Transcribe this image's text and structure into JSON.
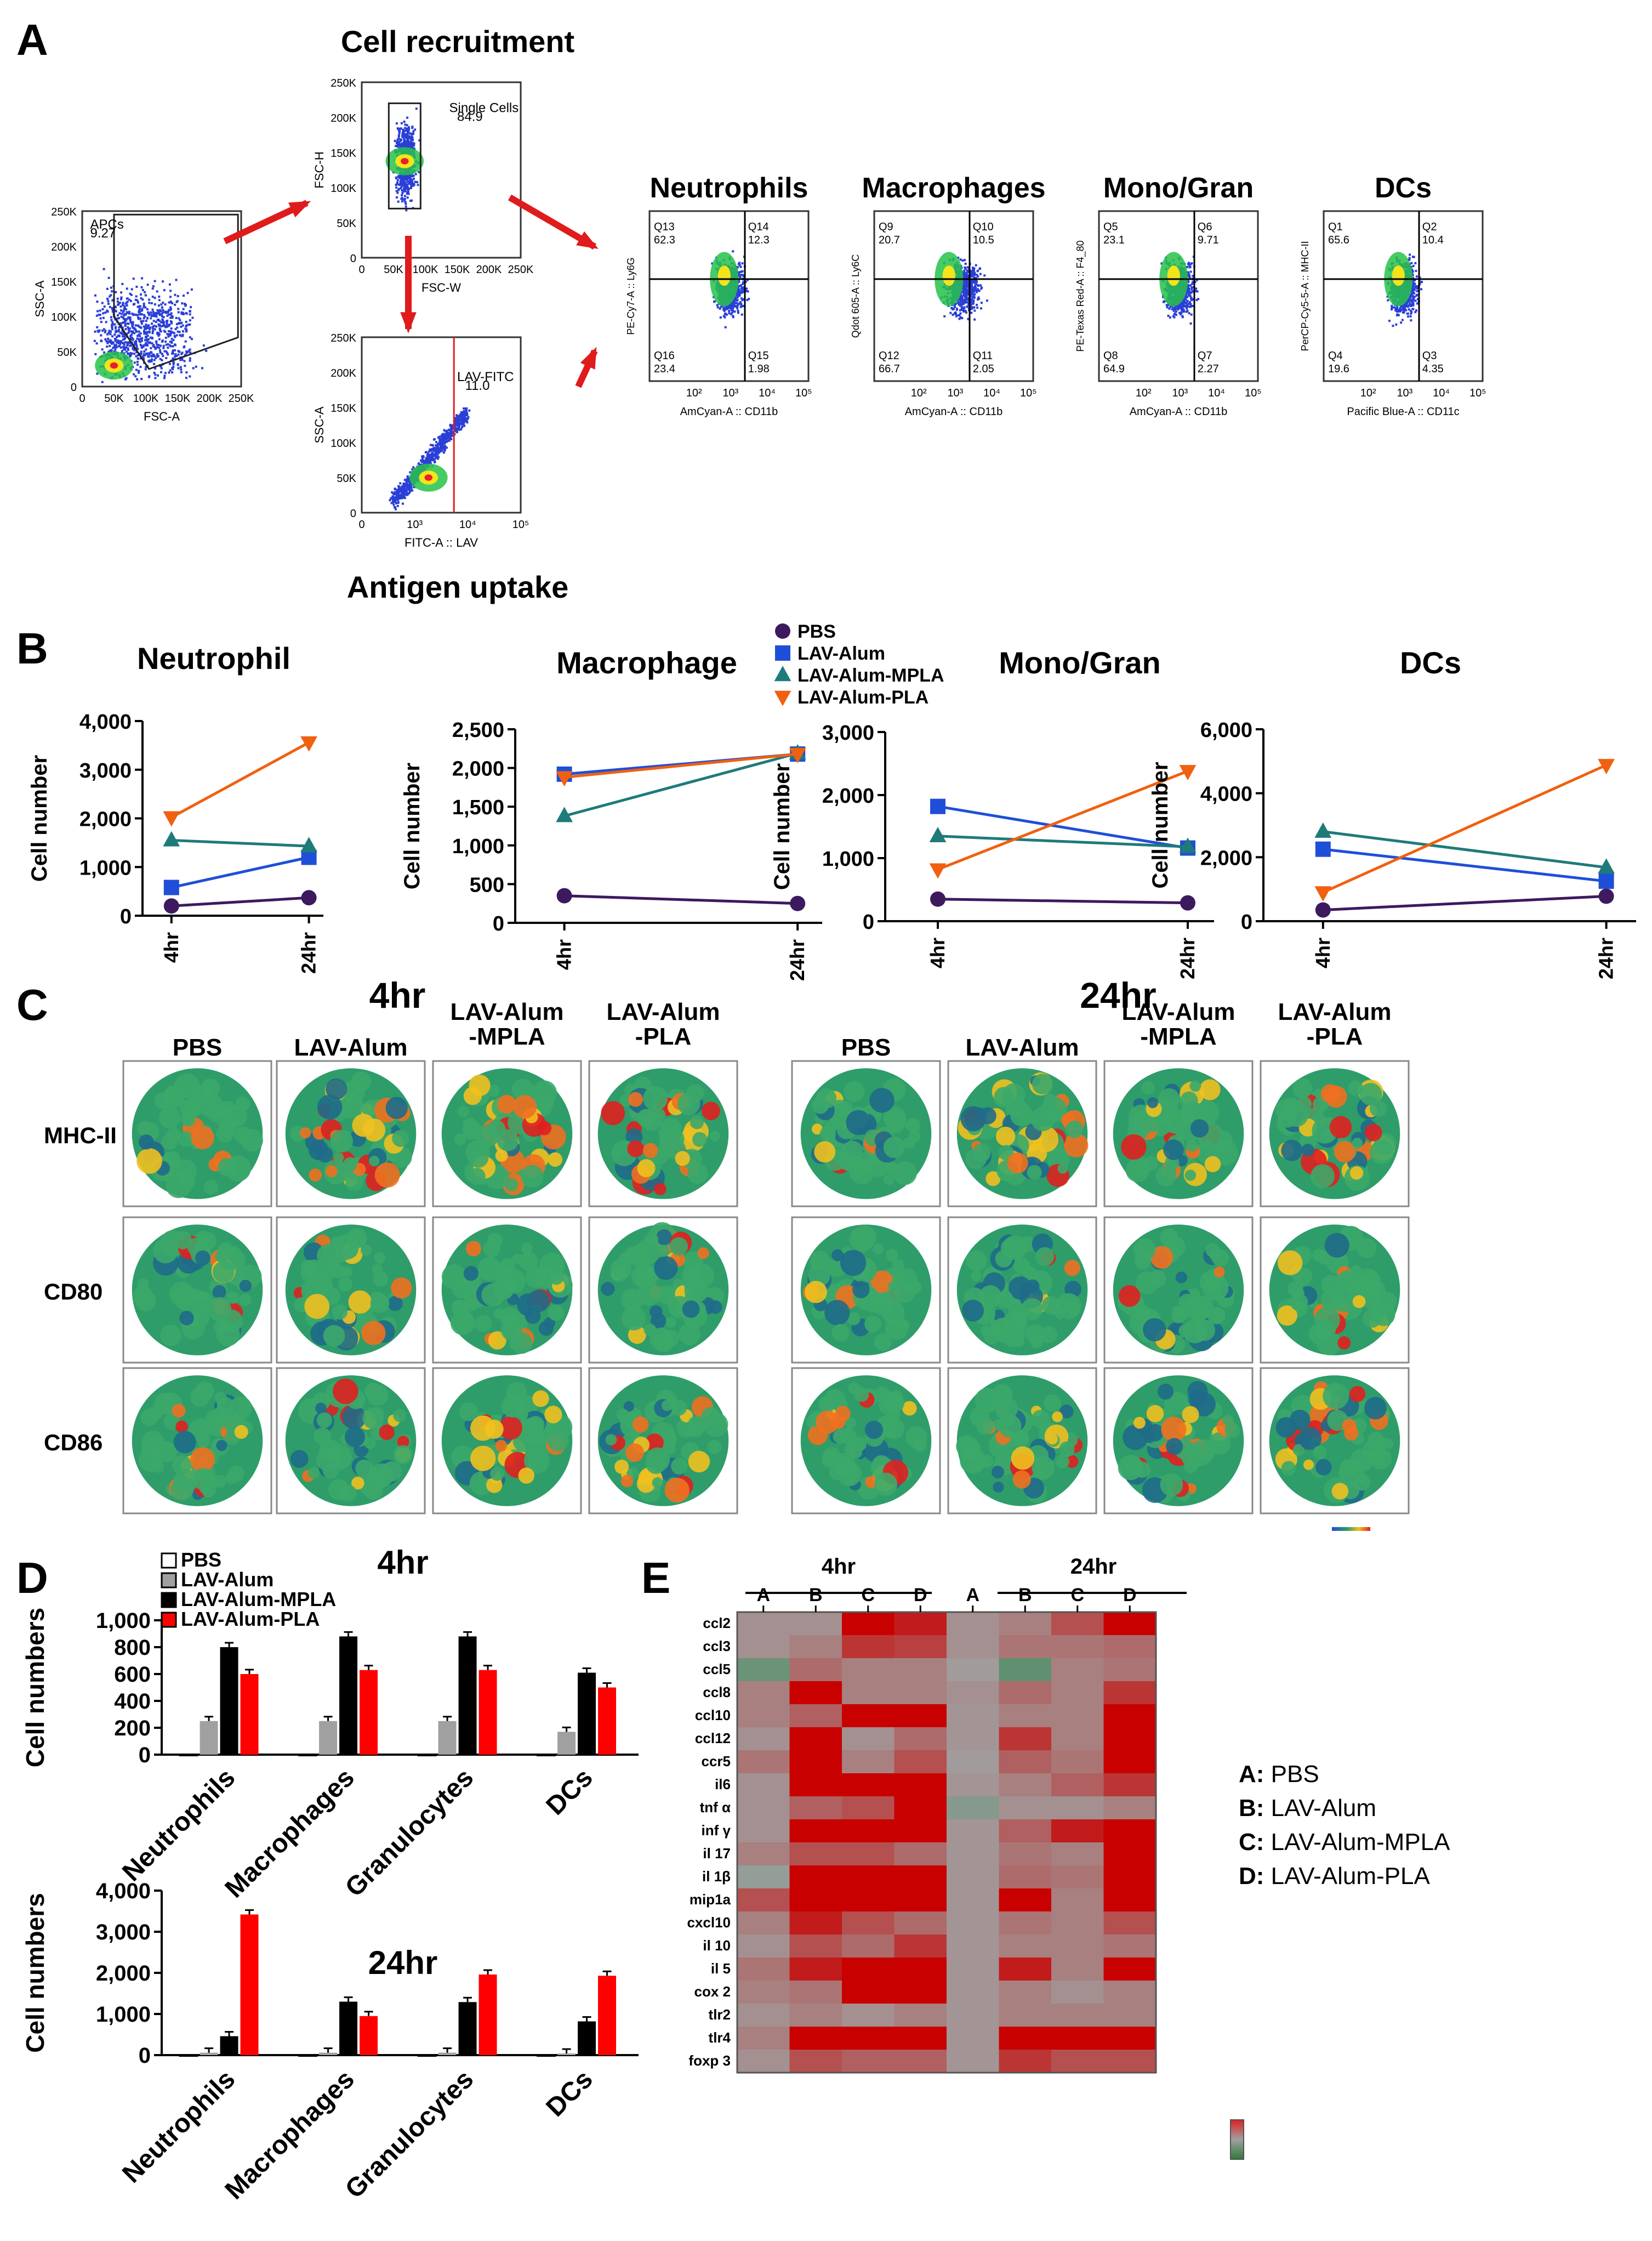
{
  "panel_labels": {
    "A": "A",
    "B": "B",
    "C": "C",
    "D": "D",
    "E": "E"
  },
  "panel_a": {
    "title_recruitment": "Cell recruitment",
    "title_uptake": "Antigen uptake",
    "gates": [
      {
        "name": "apcs",
        "gate_label": "APCs",
        "gate_value": "9.27",
        "xlabel": "FSC-A",
        "ylabel": "SSC-A",
        "xticks": [
          "0",
          "50K",
          "100K",
          "150K",
          "200K",
          "250K"
        ],
        "yticks": [
          "0",
          "50K",
          "100K",
          "150K",
          "200K",
          "250K"
        ]
      },
      {
        "name": "single-cells",
        "gate_label": "Single Cells",
        "gate_value": "84.9",
        "xlabel": "FSC-W",
        "ylabel": "FSC-H",
        "xticks": [
          "0",
          "50K",
          "100K",
          "150K",
          "200K",
          "250K"
        ],
        "yticks": [
          "0",
          "50K",
          "100K",
          "150K",
          "200K",
          "250K"
        ]
      },
      {
        "name": "lav-fitc",
        "gate_label": "LAV-FITC",
        "gate_value": "11.0",
        "xlabel": "FITC-A :: LAV",
        "ylabel": "SSC-A",
        "xticks": [
          "0",
          "10³",
          "10⁴",
          "10⁵"
        ],
        "yticks": [
          "0",
          "50K",
          "100K",
          "150K",
          "200K",
          "250K"
        ]
      }
    ],
    "quadrants": [
      {
        "title": "Neutrophils",
        "xlabel": "AmCyan-A :: CD11b",
        "ylabel": "PE-Cy7-A :: Ly6G",
        "q": [
          [
            "Q13",
            "62.3"
          ],
          [
            "Q14",
            "12.3"
          ],
          [
            "Q16",
            "23.4"
          ],
          [
            "Q15",
            "1.98"
          ]
        ]
      },
      {
        "title": "Macrophages",
        "xlabel": "AmCyan-A :: CD11b",
        "ylabel": "Qdot 605-A :: Ly6C",
        "q": [
          [
            "Q9",
            "20.7"
          ],
          [
            "Q10",
            "10.5"
          ],
          [
            "Q12",
            "66.7"
          ],
          [
            "Q11",
            "2.05"
          ]
        ]
      },
      {
        "title": "Mono/Gran",
        "xlabel": "AmCyan-A :: CD11b",
        "ylabel": "PE-Texas Red-A :: F4_80",
        "q": [
          [
            "Q5",
            "23.1"
          ],
          [
            "Q6",
            "9.71"
          ],
          [
            "Q8",
            "64.9"
          ],
          [
            "Q7",
            "2.27"
          ]
        ]
      },
      {
        "title": "DCs",
        "xlabel": "Pacific Blue-A :: CD11c",
        "ylabel": "PerCP-Cy5-5-A :: MHC-II",
        "q": [
          [
            "Q1",
            "65.6"
          ],
          [
            "Q2",
            "10.4"
          ],
          [
            "Q4",
            "19.6"
          ],
          [
            "Q3",
            "4.35"
          ]
        ]
      }
    ]
  },
  "panel_b_legend": [
    {
      "name": "PBS",
      "color": "#3d1a5e",
      "marker": "circle"
    },
    {
      "name": "LAV-Alum",
      "color": "#1f4fd8",
      "marker": "square"
    },
    {
      "name": "LAV-Alum-MPLA",
      "color": "#1f7a7a",
      "marker": "triangle"
    },
    {
      "name": "LAV-Alum-PLA",
      "color": "#f06010",
      "marker": "tri-down"
    }
  ],
  "panel_c": {
    "time_labels": [
      "4hr",
      "24hr"
    ],
    "group_labels": [
      [
        "PBS"
      ],
      [
        "LAV-Alum"
      ],
      [
        "LAV-Alum",
        "-MPLA"
      ],
      [
        "LAV-Alum",
        "-PLA"
      ]
    ],
    "markers": [
      "MHC-II",
      "CD80",
      "CD86"
    ]
  },
  "panel_d_legend": [
    {
      "name": "PBS",
      "color": "#ffffff"
    },
    {
      "name": "LAV-Alum",
      "color": "#a0a0a0"
    },
    {
      "name": "LAV-Alum-MPLA",
      "color": "#000000"
    },
    {
      "name": "LAV-Alum-PLA",
      "color": "#ff0000"
    }
  ],
  "panel_e_legend": [
    "A: PBS",
    "B: LAV-Alum",
    "C: LAV-Alum-MPLA",
    "D: LAV-Alum-PLA"
  ],
  "chart_data": [
    {
      "id": "b-neutrophil",
      "type": "line",
      "title": "Neutrophil",
      "ylabel": "Cell number",
      "categories": [
        "4hr",
        "24hr"
      ],
      "ylim": [
        0,
        4000
      ],
      "yticks": [
        0,
        1000,
        2000,
        3000,
        4000
      ],
      "ytick_labels": [
        "0",
        "1,000",
        "2,000",
        "3,000",
        "4,000"
      ],
      "series": [
        {
          "name": "PBS",
          "values": [
            200,
            370
          ]
        },
        {
          "name": "LAV-Alum",
          "values": [
            580,
            1200
          ]
        },
        {
          "name": "LAV-Alum-MPLA",
          "values": [
            1550,
            1430
          ]
        },
        {
          "name": "LAV-Alum-PLA",
          "values": [
            2020,
            3560
          ]
        }
      ]
    },
    {
      "id": "b-macrophage",
      "type": "line",
      "title": "Macrophage",
      "ylabel": "Cell number",
      "categories": [
        "4hr",
        "24hr"
      ],
      "ylim": [
        0,
        2500
      ],
      "yticks": [
        0,
        500,
        1000,
        1500,
        2000,
        2500
      ],
      "ytick_labels": [
        "0",
        "500",
        "1,000",
        "1,500",
        "2,000",
        "2,500"
      ],
      "series": [
        {
          "name": "PBS",
          "values": [
            350,
            250
          ]
        },
        {
          "name": "LAV-Alum",
          "values": [
            1920,
            2180
          ]
        },
        {
          "name": "LAV-Alum-MPLA",
          "values": [
            1380,
            2190
          ]
        },
        {
          "name": "LAV-Alum-PLA",
          "values": [
            1880,
            2180
          ]
        }
      ]
    },
    {
      "id": "b-monogran",
      "type": "line",
      "title": "Mono/Gran",
      "ylabel": "Cell number",
      "categories": [
        "4hr",
        "24hr"
      ],
      "ylim": [
        0,
        3000
      ],
      "yticks": [
        0,
        1000,
        2000,
        3000
      ],
      "ytick_labels": [
        "0",
        "1,000",
        "2,000",
        "3,000"
      ],
      "series": [
        {
          "name": "PBS",
          "values": [
            350,
            290
          ]
        },
        {
          "name": "LAV-Alum",
          "values": [
            1820,
            1160
          ]
        },
        {
          "name": "LAV-Alum-MPLA",
          "values": [
            1350,
            1180
          ]
        },
        {
          "name": "LAV-Alum-PLA",
          "values": [
            820,
            2380
          ]
        }
      ]
    },
    {
      "id": "b-dcs",
      "type": "line",
      "title": "DCs",
      "ylabel": "Cell number",
      "categories": [
        "4hr",
        "24hr"
      ],
      "ylim": [
        0,
        6000
      ],
      "yticks": [
        0,
        2000,
        4000,
        6000
      ],
      "ytick_labels": [
        "0",
        "2,000",
        "4,000",
        "6,000"
      ],
      "series": [
        {
          "name": "PBS",
          "values": [
            350,
            780
          ]
        },
        {
          "name": "LAV-Alum",
          "values": [
            2250,
            1250
          ]
        },
        {
          "name": "LAV-Alum-MPLA",
          "values": [
            2800,
            1680
          ]
        },
        {
          "name": "LAV-Alum-PLA",
          "values": [
            900,
            4880
          ]
        }
      ]
    },
    {
      "id": "d-4hr",
      "type": "bar",
      "title": "4hr",
      "ylabel": "Cell numbers",
      "categories": [
        "Neutrophils",
        "Macrophages",
        "Granulocytes",
        "DCs"
      ],
      "ylim": [
        0,
        1000
      ],
      "yticks": [
        0,
        200,
        400,
        600,
        800,
        1000
      ],
      "ytick_labels": [
        "0",
        "200",
        "400",
        "600",
        "800",
        "1,000"
      ],
      "series": [
        {
          "name": "PBS",
          "values": [
            0,
            0,
            0,
            0
          ]
        },
        {
          "name": "LAV-Alum",
          "values": [
            250,
            250,
            250,
            170
          ]
        },
        {
          "name": "LAV-Alum-MPLA",
          "values": [
            800,
            880,
            880,
            610
          ]
        },
        {
          "name": "LAV-Alum-PLA",
          "values": [
            600,
            630,
            630,
            500
          ]
        }
      ]
    },
    {
      "id": "d-24hr",
      "type": "bar",
      "title": "24hr",
      "ylabel": "Cell numbers",
      "categories": [
        "Neutrophils",
        "Macrophages",
        "Granulocytes",
        "DCs"
      ],
      "ylim": [
        0,
        4000
      ],
      "yticks": [
        0,
        1000,
        2000,
        3000,
        4000
      ],
      "ytick_labels": [
        "0",
        "1,000",
        "2,000",
        "3,000",
        "4,000"
      ],
      "series": [
        {
          "name": "PBS",
          "values": [
            0,
            0,
            0,
            0
          ]
        },
        {
          "name": "LAV-Alum",
          "values": [
            60,
            60,
            60,
            40
          ]
        },
        {
          "name": "LAV-Alum-MPLA",
          "values": [
            460,
            1300,
            1290,
            820
          ]
        },
        {
          "name": "LAV-Alum-PLA",
          "values": [
            3420,
            950,
            1960,
            1930
          ]
        }
      ]
    },
    {
      "id": "e-heatmap",
      "type": "heatmap",
      "group_labels": [
        "4hr",
        "24hr"
      ],
      "columns": [
        "A",
        "B",
        "C",
        "D",
        "A",
        "B",
        "C",
        "D"
      ],
      "rows": [
        "ccl2",
        "ccl3",
        "ccl5",
        "ccl8",
        "ccl10",
        "ccl12",
        "ccr5",
        "il6",
        "tnf α",
        "inf γ",
        "il 17",
        "il 1β",
        "mip1a",
        "cxcl10",
        "il 10",
        "il 5",
        "cox 2",
        "tlr2",
        "tlr4",
        "foxp 3"
      ],
      "values": [
        [
          0.3,
          0.3,
          3.0,
          2.5,
          0.3,
          0.6,
          1.5,
          3.0
        ],
        [
          0.3,
          0.6,
          2.0,
          1.8,
          0.3,
          0.8,
          0.8,
          1.0
        ],
        [
          -1.0,
          1.0,
          0.6,
          0.6,
          0.1,
          -1.2,
          0.6,
          0.8
        ],
        [
          0.6,
          3.0,
          0.6,
          0.6,
          0.3,
          1.0,
          0.6,
          2.0
        ],
        [
          0.6,
          1.2,
          3.0,
          3.0,
          0.2,
          0.6,
          0.6,
          3.0
        ],
        [
          0.3,
          3.0,
          0.3,
          1.0,
          0.2,
          2.0,
          0.6,
          3.0
        ],
        [
          0.8,
          3.0,
          0.6,
          1.5,
          0.1,
          1.2,
          0.8,
          3.0
        ],
        [
          0.3,
          3.0,
          3.0,
          3.0,
          0.2,
          0.6,
          1.2,
          2.0
        ],
        [
          0.3,
          1.2,
          1.5,
          3.0,
          -0.5,
          0.3,
          0.3,
          0.6
        ],
        [
          0.3,
          3.0,
          3.0,
          3.0,
          0.2,
          1.2,
          2.5,
          3.0
        ],
        [
          0.6,
          1.5,
          1.5,
          1.0,
          0.2,
          0.8,
          0.6,
          3.0
        ],
        [
          -0.2,
          3.0,
          3.0,
          3.0,
          0.2,
          1.0,
          0.8,
          3.0
        ],
        [
          1.5,
          3.0,
          3.0,
          3.0,
          0.2,
          3.0,
          0.6,
          3.0
        ],
        [
          0.6,
          2.5,
          1.5,
          1.0,
          0.2,
          0.8,
          0.6,
          1.5
        ],
        [
          0.3,
          1.5,
          1.0,
          2.0,
          0.2,
          0.6,
          0.6,
          0.8
        ],
        [
          0.8,
          2.5,
          3.0,
          3.0,
          0.2,
          2.5,
          0.6,
          3.0
        ],
        [
          0.6,
          0.8,
          3.0,
          3.0,
          0.2,
          0.6,
          0.3,
          0.6
        ],
        [
          0.3,
          0.6,
          0.3,
          0.6,
          0.2,
          0.6,
          0.6,
          0.6
        ],
        [
          0.6,
          3.0,
          3.0,
          3.0,
          0.2,
          3.0,
          3.0,
          3.0
        ],
        [
          0.3,
          1.5,
          1.2,
          1.2,
          0.2,
          2.0,
          1.5,
          1.5
        ]
      ]
    }
  ]
}
